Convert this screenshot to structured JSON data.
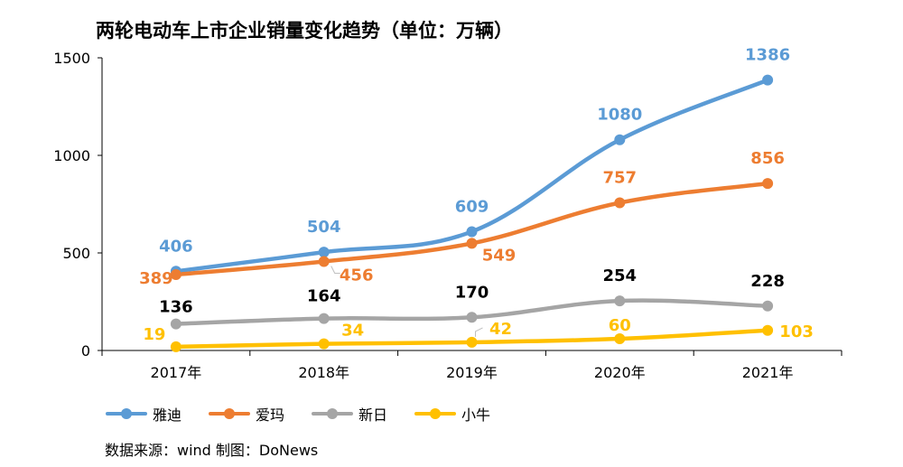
{
  "chart_data": {
    "type": "line",
    "title": "两轮电动车上市企业销量变化趋势（单位：万辆）",
    "categories": [
      "2017年",
      "2018年",
      "2019年",
      "2020年",
      "2021年"
    ],
    "ylim": [
      0,
      1500
    ],
    "yticks": [
      "0",
      "500",
      "1000",
      "1500"
    ],
    "grid": false,
    "legend_position": "bottom",
    "series": [
      {
        "name": "雅迪",
        "values": [
          406,
          504,
          609,
          1080,
          1386
        ],
        "labels": [
          "406",
          "504",
          "609",
          "1080",
          "1386"
        ],
        "color": "#5B9BD5"
      },
      {
        "name": "爱玛",
        "values": [
          389,
          456,
          549,
          757,
          856
        ],
        "labels": [
          "389",
          "456",
          "549",
          "757",
          "856"
        ],
        "color": "#ED7D31"
      },
      {
        "name": "新日",
        "values": [
          136,
          164,
          170,
          254,
          228
        ],
        "labels": [
          "136",
          "164",
          "170",
          "254",
          "228"
        ],
        "color": "#A5A5A5"
      },
      {
        "name": "小牛",
        "values": [
          19,
          34,
          42,
          60,
          103
        ],
        "labels": [
          "19",
          "34",
          "42",
          "60",
          "103"
        ],
        "color": "#FFC000"
      }
    ]
  },
  "source": "数据来源：wind   制图：DoNews",
  "data_label_color_black_series": "新日"
}
